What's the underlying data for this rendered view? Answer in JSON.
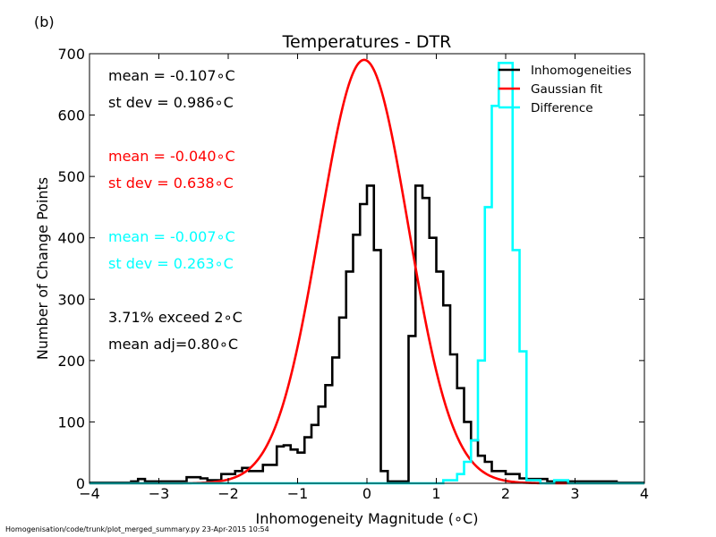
{
  "panel_label": "(b)",
  "footer": "Homogenisation/code/trunk/plot_merged_summary.py    23-Apr-2015 10:54",
  "chart_data": {
    "type": "line",
    "title": "Temperatures - DTR",
    "xlabel": "Inhomogeneity Magnitude (∘C)",
    "ylabel": "Number of Change Points",
    "xlim": [
      -4,
      4
    ],
    "ylim": [
      0,
      700
    ],
    "xticks": [
      "−4",
      "−3",
      "−2",
      "−1",
      "0",
      "1",
      "2",
      "3",
      "4"
    ],
    "yticks": [
      "0",
      "100",
      "200",
      "300",
      "400",
      "500",
      "600",
      "700"
    ],
    "grid": false,
    "legend_position": "top-right",
    "colors": {
      "inhom": "#000000",
      "gauss": "#ff0000",
      "diff": "#00ffff"
    },
    "legend": [
      "Inhomogeneities",
      "Gaussian fit",
      "Difference"
    ],
    "stats": [
      {
        "text": "mean = -0.107∘C",
        "color": "#000000"
      },
      {
        "text": "st dev =  0.986∘C",
        "color": "#000000"
      },
      {
        "text": "mean = -0.040∘C",
        "color": "#ff0000"
      },
      {
        "text": "st dev =  0.638∘C",
        "color": "#ff0000"
      },
      {
        "text": "mean = -0.007∘C",
        "color": "#00ffff"
      },
      {
        "text": "st dev =  0.263∘C",
        "color": "#00ffff"
      },
      {
        "text": "3.71% exceed 2∘C",
        "color": "#000000"
      },
      {
        "text": "mean adj=0.80∘C",
        "color": "#000000"
      }
    ],
    "bin_width": 0.1,
    "bin_start": -4.0,
    "series": [
      {
        "name": "Inhomogeneities",
        "style": "step",
        "values": [
          1,
          1,
          1,
          1,
          1,
          1,
          3,
          7,
          3,
          3,
          3,
          3,
          3,
          3,
          10,
          10,
          8,
          5,
          5,
          15,
          15,
          20,
          25,
          20,
          20,
          30,
          30,
          60,
          62,
          55,
          50,
          75,
          95,
          125,
          160,
          205,
          270,
          345,
          405,
          455,
          485,
          380,
          20,
          3,
          3,
          3,
          240,
          485,
          465,
          400,
          345,
          290,
          210,
          155,
          100,
          70,
          45,
          35,
          20,
          20,
          15,
          15,
          8,
          7,
          7,
          7,
          3,
          3,
          3,
          3,
          3,
          3,
          3,
          3,
          3,
          3,
          1,
          1,
          1,
          1
        ]
      },
      {
        "name": "Gaussian fit",
        "style": "curve",
        "mean": -0.04,
        "stdev": 0.638,
        "peak": 690
      },
      {
        "name": "Difference",
        "style": "step",
        "values": [
          0,
          0,
          0,
          0,
          0,
          0,
          0,
          0,
          0,
          0,
          0,
          0,
          0,
          0,
          0,
          0,
          0,
          0,
          0,
          0,
          0,
          0,
          0,
          0,
          0,
          0,
          0,
          0,
          0,
          0,
          0,
          0,
          0,
          0,
          0,
          0,
          0,
          0,
          0,
          0,
          0,
          0,
          0,
          0,
          0,
          0,
          0,
          0,
          0,
          0,
          0,
          5,
          5,
          15,
          35,
          70,
          200,
          450,
          615,
          685,
          685,
          380,
          215,
          5,
          5,
          0,
          0,
          5,
          5,
          0,
          0,
          0,
          0,
          0,
          0,
          0,
          0,
          0,
          0,
          0
        ],
        "values_note": ""
      }
    ]
  }
}
